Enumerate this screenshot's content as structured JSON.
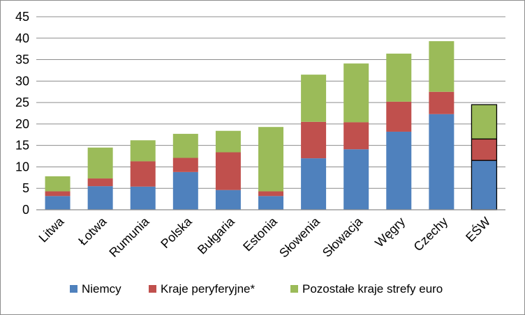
{
  "chart_data": {
    "type": "bar",
    "stacked": true,
    "categories": [
      "Litwa",
      "Łotwa",
      "Rumunia",
      "Polska",
      "Bułgaria",
      "Estonia",
      "Słowenia",
      "Słowacja",
      "Węgry",
      "Czechy",
      "EŚW"
    ],
    "series": [
      {
        "name": "Niemcy",
        "color": "#4f81bd",
        "values": [
          3.2,
          5.5,
          5.4,
          8.8,
          4.6,
          3.2,
          12.0,
          14.1,
          18.2,
          22.3,
          11.5
        ]
      },
      {
        "name": "Kraje peryferyjne*",
        "color": "#c0504d",
        "values": [
          1.1,
          1.8,
          5.9,
          3.3,
          8.8,
          1.1,
          8.5,
          6.3,
          7.0,
          5.2,
          5.0
        ]
      },
      {
        "name": "Pozostałe kraje strefy euro",
        "color": "#9bbb59",
        "values": [
          3.5,
          7.2,
          4.9,
          5.6,
          5.0,
          15.0,
          11.0,
          13.7,
          11.2,
          11.8,
          8.0
        ]
      }
    ],
    "highlighted_category": "EŚW",
    "ylim": [
      0,
      45
    ],
    "yticks": [
      "0",
      "5",
      "10",
      "15",
      "20",
      "25",
      "30",
      "35",
      "40",
      "45"
    ],
    "grid": true,
    "legend_position": "bottom",
    "xlabel": "",
    "ylabel": "",
    "title": ""
  }
}
